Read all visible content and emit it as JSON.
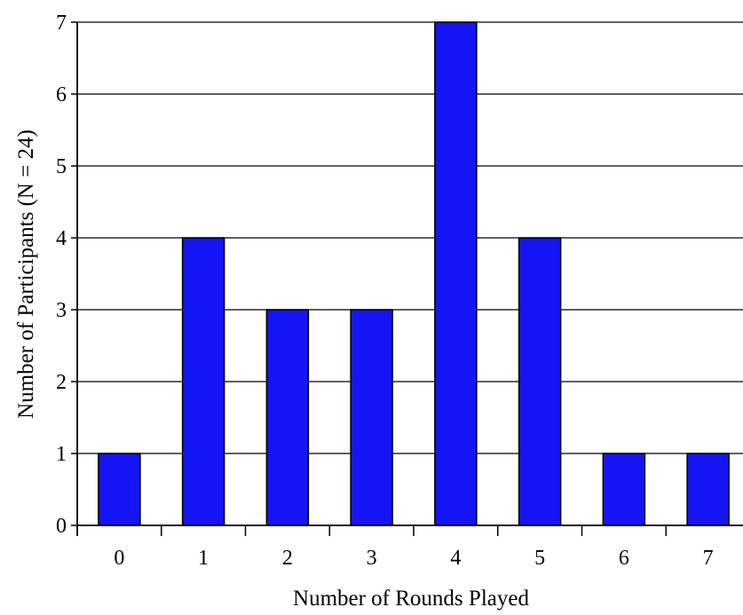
{
  "chart_data": {
    "type": "bar",
    "title": "",
    "xlabel": "Number of Rounds Played",
    "ylabel": "Number of Participants (N = 24)",
    "categories": [
      "0",
      "1",
      "2",
      "3",
      "4",
      "5",
      "6",
      "7"
    ],
    "values": [
      1,
      4,
      3,
      3,
      7,
      4,
      1,
      1
    ],
    "ylim": [
      0,
      7
    ],
    "yticks": [
      "0",
      "1",
      "2",
      "3",
      "4",
      "5",
      "6",
      "7"
    ],
    "grid": true,
    "legend": "none",
    "colors": {
      "bar_fill": "#1515F5",
      "bar_stroke": "#000000",
      "grid": "#000000",
      "axis": "#000000"
    }
  }
}
